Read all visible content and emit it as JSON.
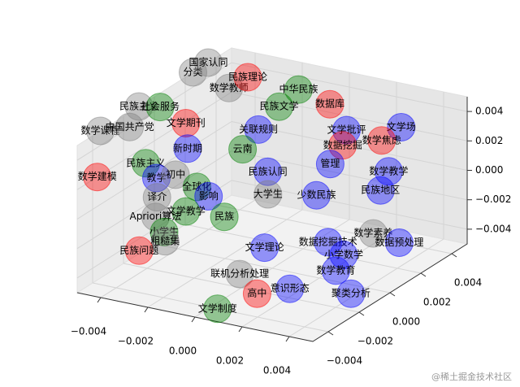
{
  "chart_data": {
    "type": "scatter3d",
    "xlim": [
      -0.005,
      0.005
    ],
    "ylim": [
      -0.005,
      0.005
    ],
    "zlim": [
      -0.005,
      0.005
    ],
    "xticks": [
      {
        "value": -0.004,
        "label": "−0.004"
      },
      {
        "value": -0.002,
        "label": "−0.002"
      },
      {
        "value": 0,
        "label": "0.000"
      },
      0.002,
      0.004
    ],
    "yticks": [
      {
        "value": -0.004,
        "label": "−0.004"
      },
      {
        "value": -0.002,
        "label": "−0.002"
      },
      {
        "value": 0,
        "label": "0.000"
      },
      0.002,
      0.004
    ],
    "zticks": [
      {
        "value": -0.004,
        "label": "−0.004"
      },
      {
        "value": -0.002,
        "label": "−0.002"
      },
      {
        "value": 0,
        "label": "0.000"
      },
      0.002,
      0.004
    ],
    "grid": true,
    "labels": [
      "分类",
      "国家认同",
      "数学教师",
      "民族理论",
      "中华民族",
      "数据库",
      "民族文学",
      "数学课程",
      "民族主义",
      "社会服务",
      "中国共产党",
      "文学期刊",
      "关联规则",
      "文学批评",
      "文学场",
      "数学焦虑",
      "数据挖掘",
      "管理",
      "新时期",
      "云南",
      "民族主义",
      "数学建模",
      "教学",
      "初中",
      "全球化",
      "影响",
      "译介",
      "民族认同",
      "少数民族",
      "数学教学",
      "民族地区",
      "大学生",
      "文学教学",
      "Apriori算法",
      "小学生",
      "粗糙集",
      "民族问题",
      "数学素养",
      "数据预处理",
      "文学理论",
      "数据挖掘技术",
      "小学数学",
      "数学教育",
      "联机分析处理",
      "意识形态",
      "高中",
      "聚类分析",
      "文学制度",
      "民族"
    ],
    "colors": [
      "gray",
      "gray",
      "gray",
      "red",
      "green",
      "red",
      "green",
      "gray",
      "gray",
      "green",
      "gray",
      "red",
      "blue",
      "blue",
      "blue",
      "red",
      "red",
      "blue",
      "blue",
      "green",
      "green",
      "red",
      "blue",
      "gray",
      "green",
      "blue",
      "gray",
      "blue",
      "blue",
      "blue",
      "blue",
      "gray",
      "green",
      "gray",
      "green",
      "gray",
      "red",
      "gray",
      "blue",
      "blue",
      "blue",
      "blue",
      "blue",
      "gray",
      "blue",
      "red",
      "blue",
      "green",
      "green"
    ],
    "x": [
      -0.005,
      -0.005,
      -0.0038,
      -0.003,
      -0.0015,
      -0.0005,
      -0.002,
      -0.005,
      -0.005,
      -0.0043,
      -0.005,
      -0.0034,
      -0.0015,
      0.0006,
      0.0022,
      0.0015,
      0.0005,
      0.0003,
      -0.0028,
      -0.0025,
      -0.0034,
      -0.005,
      -0.0038,
      -0.0041,
      -0.0028,
      -0.0027,
      -0.0043,
      -0.0013,
      0.0007,
      0.0018,
      0.0025,
      -0.0009,
      -0.0034,
      -0.0041,
      -0.0038,
      -0.0033,
      -0.0044,
      0.0037,
      0.005,
      0.0002,
      0.0027,
      0.0031,
      0.0029,
      0,
      0.0016,
      0.0008,
      0.0038,
      0.0003,
      -0.0019
    ],
    "y": [
      0.0025,
      0.0035,
      0.003,
      0.003,
      0.004,
      0.0045,
      0.0035,
      -0.0035,
      -0.001,
      -0.0007,
      -0.0016,
      -0.0004,
      0.0014,
      0.0039,
      0.005,
      0.0048,
      0.0038,
      0.0033,
      -0.0012,
      0.0019,
      -0.003,
      -0.0037,
      -0.0017,
      0,
      -0.0006,
      0,
      -0.0009,
      0.0017,
      0.0018,
      0.0048,
      0.0032,
      0.0011,
      -0.0004,
      -0.0013,
      -0.0012,
      -0.0019,
      -0.0019,
      0.0009,
      0.0006,
      -0.0008,
      -0.0005,
      -0.0001,
      -0.0003,
      -0.0021,
      -0.0013,
      -0.0022,
      -0.0007,
      -0.004,
      -0.0002
    ],
    "z": [
      0.005,
      0.005,
      0.004,
      0.005,
      0.004,
      0.003,
      0.003,
      0.005,
      0.005,
      0.005,
      0.004,
      0.004,
      0.003,
      0.002,
      0.002,
      0.001,
      0.001,
      0,
      0.003,
      0.001,
      0.003,
      0.002,
      0.001,
      0,
      0,
      -0.001,
      -0.001,
      0,
      -0.001,
      -0.001,
      -0.001,
      -0.001,
      -0.002,
      -0.002,
      -0.003,
      -0.003,
      -0.004,
      -0.002,
      -0.002,
      -0.003,
      -0.002,
      -0.003,
      -0.004,
      -0.004,
      -0.005,
      -0.005,
      -0.005,
      -0.005,
      -0.002
    ],
    "watermark": "@稀土掘金技术社区"
  }
}
